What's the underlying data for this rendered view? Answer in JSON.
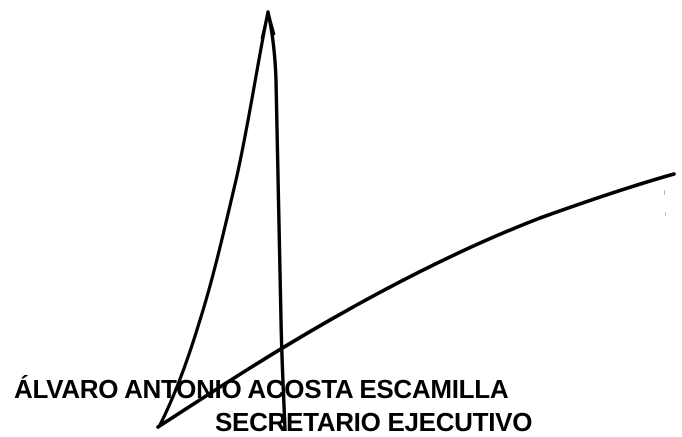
{
  "signature": {
    "name": "ÁLVARO ANTONIO ACOSTA ESCAMILLA",
    "title": "SECRETARIO EJECUTIVO",
    "ink_color": "#000000",
    "background_color": "#ffffff"
  }
}
